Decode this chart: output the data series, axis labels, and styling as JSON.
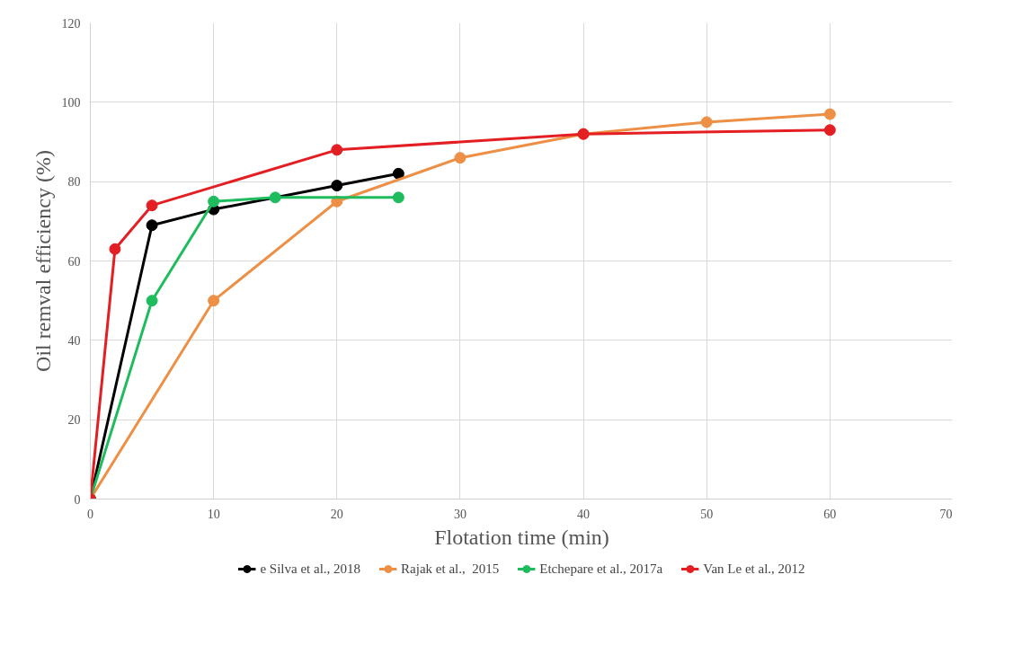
{
  "chart_data": {
    "type": "line",
    "xlabel": "Flotation time (min)",
    "ylabel": "Oil remval efficiency (%)",
    "xlim": [
      0,
      70
    ],
    "xticks": [
      0,
      10,
      20,
      30,
      40,
      50,
      60,
      70
    ],
    "ylim": [
      0,
      120
    ],
    "yticks": [
      0,
      20,
      40,
      60,
      80,
      100,
      120
    ],
    "grid": true,
    "legend": "bottom",
    "marker": "circle",
    "line_style": "solid",
    "series": [
      {
        "name": "e Silva et al., 2018",
        "color": "#000000",
        "x": [
          0,
          5,
          10,
          20,
          25
        ],
        "values": [
          0,
          69,
          73,
          79,
          82
        ]
      },
      {
        "name": "Rajak et al.,  2015",
        "color": "#ed8f45",
        "x": [
          0,
          10,
          20,
          30,
          40,
          50,
          60
        ],
        "values": [
          0,
          50,
          75,
          86,
          92,
          95,
          97
        ]
      },
      {
        "name": "Etchepare et al., 2017a",
        "color": "#1ebc5c",
        "x": [
          0,
          5,
          10,
          15,
          25
        ],
        "values": [
          0,
          50,
          75,
          76,
          76
        ]
      },
      {
        "name": "Van Le et al., 2012",
        "color": "#e41f23",
        "x": [
          0,
          2,
          5,
          20,
          40,
          60
        ],
        "values": [
          0,
          63,
          74,
          88,
          92,
          93
        ]
      }
    ]
  }
}
